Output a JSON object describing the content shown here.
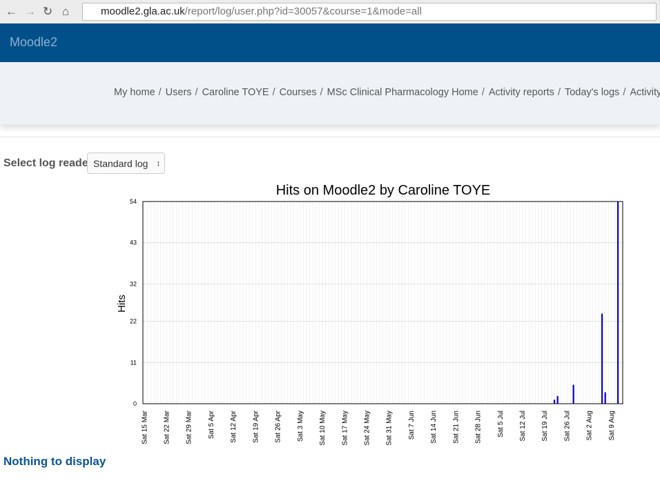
{
  "browser": {
    "host": "moodle2.gla.ac.uk",
    "path": "/report/log/user.php?id=30057&course=1&mode=all"
  },
  "header": {
    "site_name": "Moodle2"
  },
  "breadcrumbs": [
    "My home",
    "Users",
    "Caroline TOYE",
    "Courses",
    "MSc Clinical Pharmacology Home",
    "Activity reports",
    "Today's logs",
    "Activity"
  ],
  "form": {
    "label": "Select log reader",
    "select_value": "Standard log"
  },
  "chart_data": {
    "type": "bar",
    "title": "Hits on Moodle2 by Caroline TOYE",
    "y_label": "Hits",
    "color": "#0000cc",
    "grid": true,
    "ylim": [
      0,
      54
    ],
    "yticks": [
      0,
      11,
      22,
      32,
      43,
      54
    ],
    "categories": [
      "Sat 15 Mar",
      null,
      null,
      null,
      null,
      null,
      null,
      "Sat 22 Mar",
      null,
      null,
      null,
      null,
      null,
      null,
      "Sat 29 Mar",
      null,
      null,
      null,
      null,
      null,
      null,
      "Sat 5 Apr",
      null,
      null,
      null,
      null,
      null,
      null,
      "Sat 12 Apr",
      null,
      null,
      null,
      null,
      null,
      null,
      "Sat 19 Apr",
      null,
      null,
      null,
      null,
      null,
      null,
      "Sat 26 Apr",
      null,
      null,
      null,
      null,
      null,
      null,
      "Sat 3 May",
      null,
      null,
      null,
      null,
      null,
      null,
      "Sat 10 May",
      null,
      null,
      null,
      null,
      null,
      null,
      "Sat 17 May",
      null,
      null,
      null,
      null,
      null,
      null,
      "Sat 24 May",
      null,
      null,
      null,
      null,
      null,
      null,
      "Sat 31 May",
      null,
      null,
      null,
      null,
      null,
      null,
      "Sat 7 Jun",
      null,
      null,
      null,
      null,
      null,
      null,
      "Sat 14 Jun",
      null,
      null,
      null,
      null,
      null,
      null,
      "Sat 21 Jun",
      null,
      null,
      null,
      null,
      null,
      null,
      "Sat 28 Jun",
      null,
      null,
      null,
      null,
      null,
      null,
      "Sat 5 Jul",
      null,
      null,
      null,
      null,
      null,
      null,
      "Sat 12 Jul",
      null,
      null,
      null,
      null,
      null,
      null,
      "Sat 19 Jul",
      null,
      null,
      null,
      null,
      null,
      null,
      "Sat 26 Jul",
      null,
      null,
      null,
      null,
      null,
      null,
      "Sat 2 Aug",
      null,
      null,
      null,
      null,
      null,
      null,
      "Sat 9 Aug",
      null,
      null,
      null
    ],
    "values": [
      0,
      0,
      0,
      0,
      0,
      0,
      0,
      0,
      0,
      0,
      0,
      0,
      0,
      0,
      0,
      0,
      0,
      0,
      0,
      0,
      0,
      0,
      0,
      0,
      0,
      0,
      0,
      0,
      0,
      0,
      0,
      0,
      0,
      0,
      0,
      0,
      0,
      0,
      0,
      0,
      0,
      0,
      0,
      0,
      0,
      0,
      0,
      0,
      0,
      0,
      0,
      0,
      0,
      0,
      0,
      0,
      0,
      0,
      0,
      0,
      0,
      0,
      0,
      0,
      0,
      0,
      0,
      0,
      0,
      0,
      0,
      0,
      0,
      0,
      0,
      0,
      0,
      0,
      0,
      0,
      0,
      0,
      0,
      0,
      0,
      0,
      0,
      0,
      0,
      0,
      0,
      0,
      0,
      0,
      0,
      0,
      0,
      0,
      0,
      0,
      0,
      0,
      0,
      0,
      0,
      0,
      0,
      0,
      0,
      0,
      0,
      0,
      0,
      0,
      0,
      0,
      0,
      0,
      0,
      0,
      0,
      0,
      0,
      0,
      0,
      0,
      0,
      0,
      0,
      1,
      2,
      0,
      0,
      0,
      0,
      5,
      0,
      0,
      0,
      0,
      0,
      0,
      0,
      0,
      24,
      3,
      0,
      0,
      0,
      54,
      0
    ]
  },
  "footer": {
    "message": "Nothing to display"
  }
}
